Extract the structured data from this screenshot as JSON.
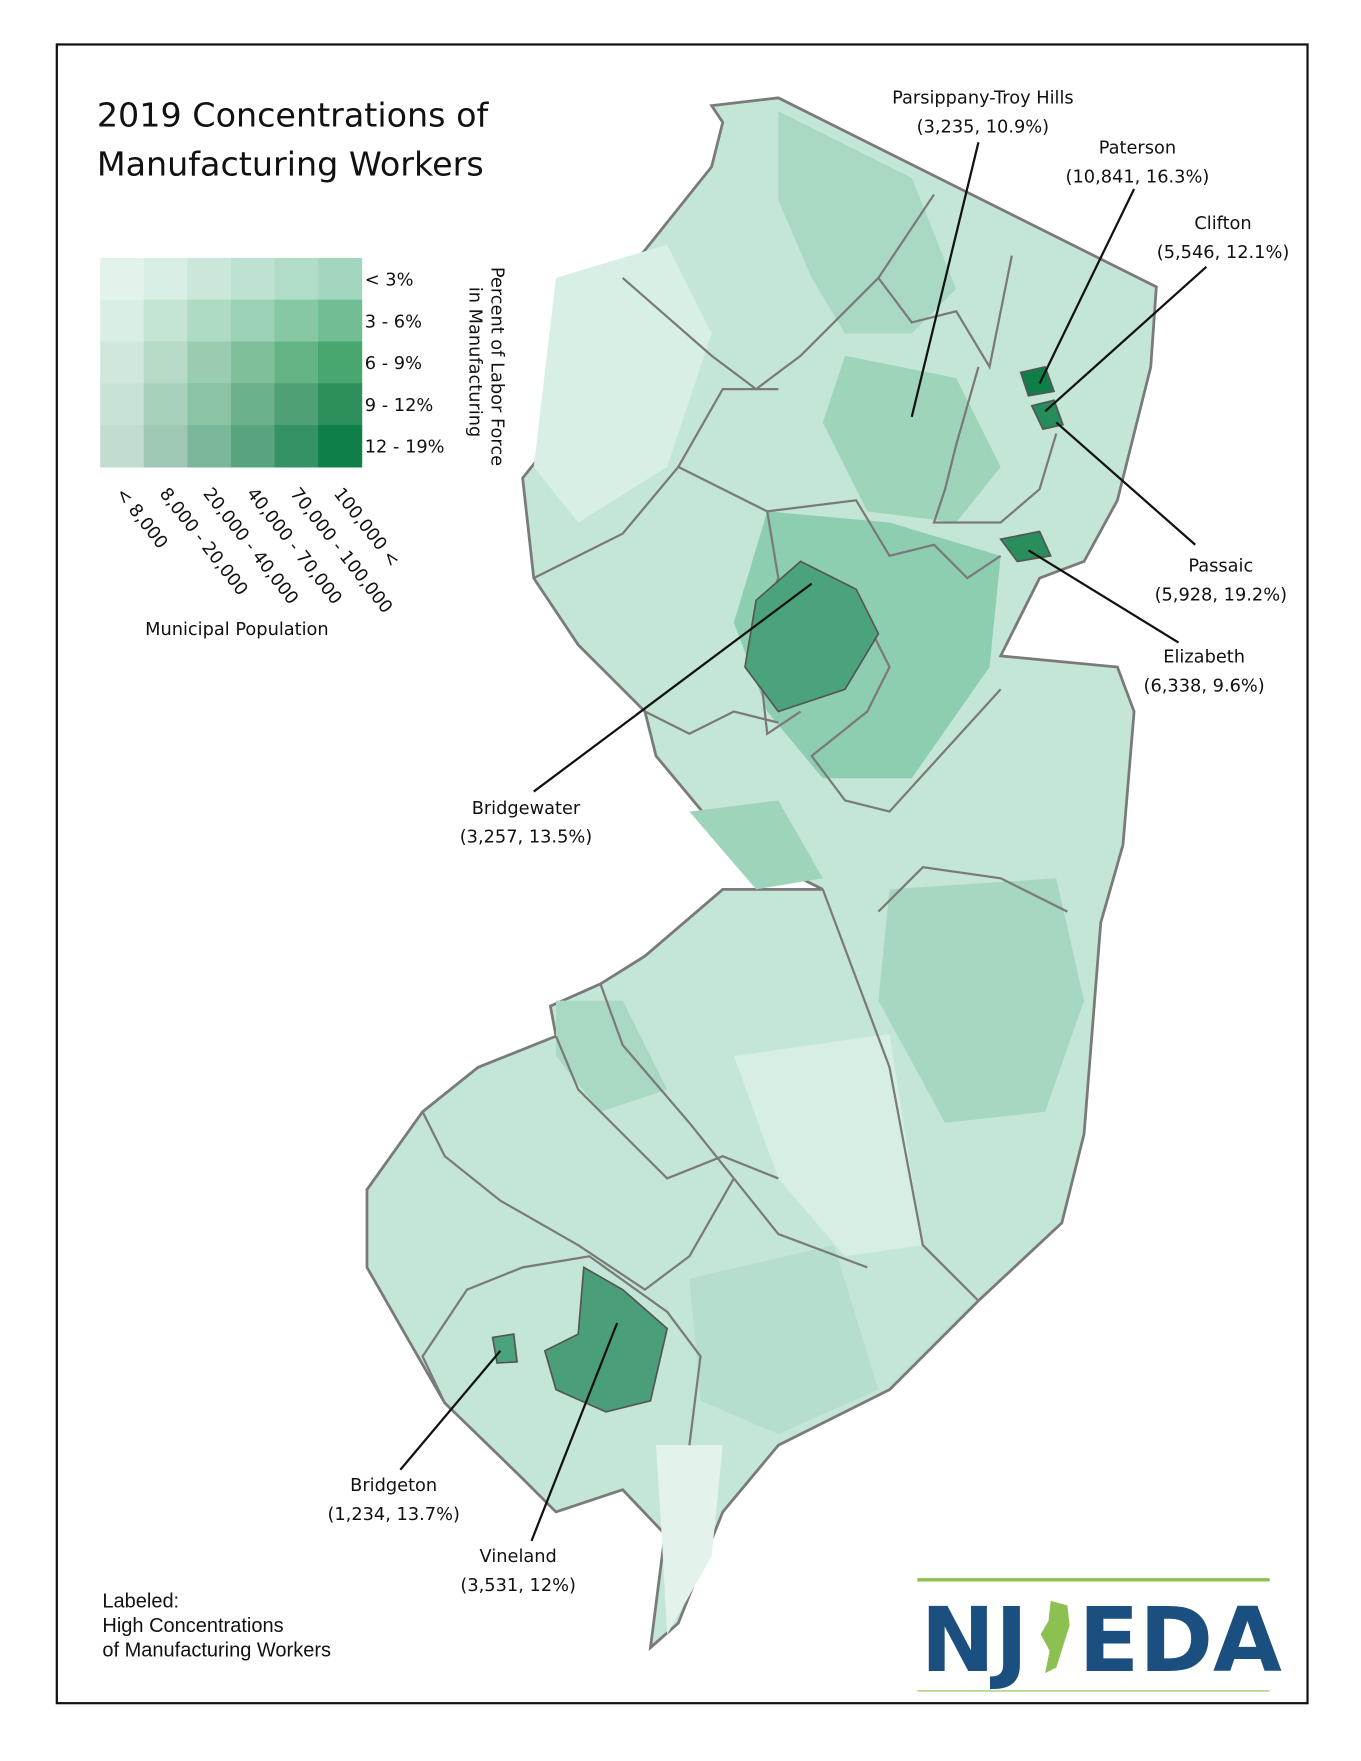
{
  "title": [
    "2019 Concentrations of",
    "Manufacturing Workers"
  ],
  "legend": {
    "row_labels": [
      "< 3%",
      "3 - 6%",
      "6 - 9%",
      "9 - 12%",
      "12 - 19%"
    ],
    "row_title": [
      "Percent of Labor Force",
      "in Manufacturing"
    ],
    "column_labels": [
      "< 8,000",
      "8,000 - 20,000",
      "20,000 - 40,000",
      "40,000 - 70,000",
      "70,000 - 100,000",
      "100,000 <"
    ],
    "column_title": "Municipal Population",
    "colors": [
      [
        "#e3f3ec",
        "#d6eee3",
        "#c9e8da",
        "#bde2d1",
        "#b0dcc8",
        "#a3d6bf"
      ],
      [
        "#d9eee4",
        "#c4e4d4",
        "#afdac4",
        "#9bd1b4",
        "#86c7a4",
        "#71bd94"
      ],
      [
        "#d0e8dc",
        "#b5dac6",
        "#9acdb0",
        "#7fc09a",
        "#64b384",
        "#49a66e"
      ],
      [
        "#c8e2d5",
        "#a8d1bb",
        "#8bc3a5",
        "#6db18c",
        "#4fa075",
        "#2d8f5c"
      ],
      [
        "#c2dccf",
        "#9fc9b4",
        "#7bb79a",
        "#57a47f",
        "#349265",
        "#0f7f4a"
      ]
    ]
  },
  "callouts": [
    {
      "name": "Parsippany-Troy Hills",
      "detail": "(3,235, 10.9%)"
    },
    {
      "name": "Paterson",
      "detail": "(10,841, 16.3%)"
    },
    {
      "name": "Clifton",
      "detail": "(5,546, 12.1%)"
    },
    {
      "name": "Passaic",
      "detail": "(5,928, 19.2%)"
    },
    {
      "name": "Elizabeth",
      "detail": "(6,338, 9.6%)"
    },
    {
      "name": "Bridgewater",
      "detail": "(3,257, 13.5%)"
    },
    {
      "name": "Bridgeton",
      "detail": "(1,234, 13.7%)"
    },
    {
      "name": "Vineland",
      "detail": "(3,531, 12%)"
    }
  ],
  "footnote": [
    "Labeled:",
    "High Concentrations",
    "of Manufacturing Workers"
  ],
  "logo": [
    "NJ",
    "EDA"
  ]
}
